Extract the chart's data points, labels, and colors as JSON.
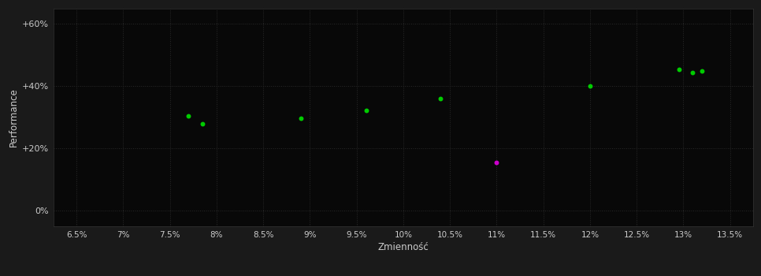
{
  "background_color": "#1a1a1a",
  "plot_bg_color": "#080808",
  "grid_color": "#2a2a2a",
  "text_color": "#cccccc",
  "xlabel": "Zmienność",
  "ylabel": "Performance",
  "xlim": [
    0.0625,
    0.1375
  ],
  "ylim": [
    -0.05,
    0.65
  ],
  "xticks": [
    0.065,
    0.07,
    0.075,
    0.08,
    0.085,
    0.09,
    0.095,
    0.1,
    0.105,
    0.11,
    0.115,
    0.12,
    0.125,
    0.13,
    0.135
  ],
  "xtick_labels": [
    "6.5%",
    "7%",
    "7.5%",
    "8%",
    "8.5%",
    "9%",
    "9.5%",
    "10%",
    "10.5%",
    "11%",
    "11.5%",
    "12%",
    "12.5%",
    "13%",
    "13.5%"
  ],
  "yticks": [
    0.0,
    0.2,
    0.4,
    0.6
  ],
  "ytick_labels": [
    "0%",
    "+20%",
    "+40%",
    "+60%"
  ],
  "green_points": [
    [
      0.077,
      0.305
    ],
    [
      0.0785,
      0.28
    ],
    [
      0.089,
      0.298
    ],
    [
      0.096,
      0.322
    ],
    [
      0.104,
      0.36
    ],
    [
      0.12,
      0.4
    ],
    [
      0.1295,
      0.455
    ],
    [
      0.131,
      0.443
    ],
    [
      0.132,
      0.45
    ]
  ],
  "magenta_points": [
    [
      0.11,
      0.155
    ]
  ],
  "green_color": "#00cc00",
  "magenta_color": "#cc00cc",
  "point_size": 18,
  "marker": "o"
}
